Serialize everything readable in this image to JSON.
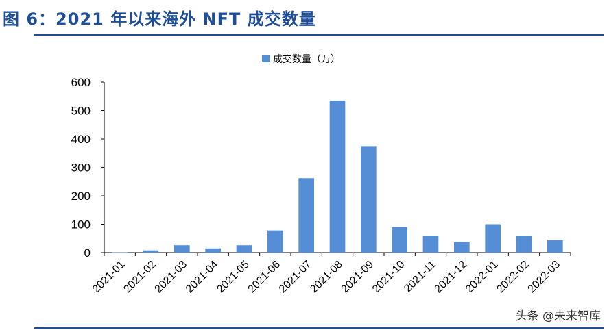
{
  "figure": {
    "title": "图 6：2021 年以来海外 NFT 成交数量"
  },
  "watermark": "头条 @未来智库",
  "colors": {
    "bar": "#558ed5",
    "title": "#1f4e99",
    "axis": "#000000"
  },
  "chart_data": {
    "type": "bar",
    "categories": [
      "2021-01",
      "2021-02",
      "2021-03",
      "2021-04",
      "2021-05",
      "2021-06",
      "2021-07",
      "2021-08",
      "2021-09",
      "2021-10",
      "2021-11",
      "2021-12",
      "2022-01",
      "2022-02",
      "2022-03"
    ],
    "series": [
      {
        "name": "成交数量（万）",
        "values": [
          1,
          8,
          26,
          15,
          26,
          78,
          262,
          535,
          375,
          90,
          60,
          38,
          100,
          60,
          44
        ]
      }
    ],
    "ylim": [
      0,
      600
    ],
    "yticks": [
      0,
      100,
      200,
      300,
      400,
      500,
      600
    ],
    "legend": "top-center",
    "grid": false
  }
}
